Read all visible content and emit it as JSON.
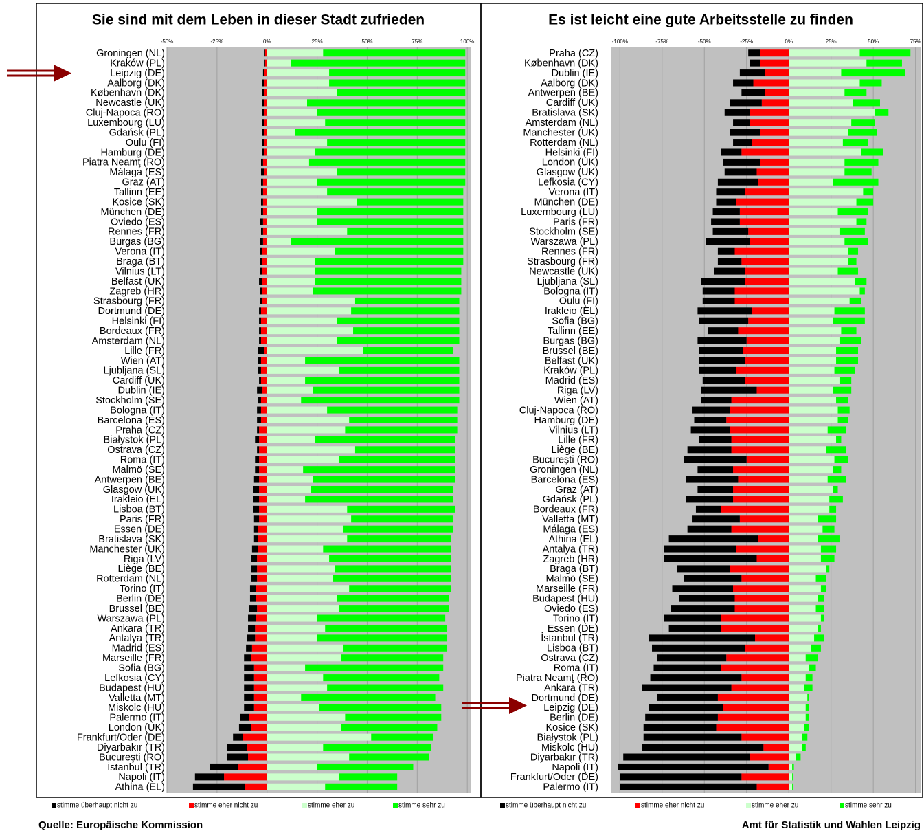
{
  "chart_data": [
    {
      "type": "diverging_bar",
      "title": "Sie sind mit dem Leben in dieser Stadt zufrieden",
      "categories": [
        "Groningen (NL)",
        "Kraków (PL)",
        "Leipzig (DE)",
        "Aalborg (DK)",
        "København (DK)",
        "Newcastle (UK)",
        "Cluj-Napoca (RO)",
        "Luxembourg (LU)",
        "Gdańsk (PL)",
        "Oulu (FI)",
        "Hamburg (DE)",
        "Piatra Neamţ (RO)",
        "Málaga (ES)",
        "Graz (AT)",
        "Tallinn (EE)",
        "Kosice (SK)",
        "München (DE)",
        "Oviedo (ES)",
        "Rennes (FR)",
        "Burgas (BG)",
        "Verona (IT)",
        "Braga (BT)",
        "Vilnius (LT)",
        "Belfast (UK)",
        "Zagreb (HR)",
        "Strasbourg (FR)",
        "Dortmund (DE)",
        "Helsinki (FI)",
        "Bordeaux (FR)",
        "Amsterdam (NL)",
        "Lille (FR)",
        "Wien (AT)",
        "Ljubljana (SL)",
        "Cardiff (UK)",
        "Dublin (IE)",
        "Stockholm (SE)",
        "Bologna (IT)",
        "Barcelona (ES)",
        "Praha (CZ)",
        "Białystok (PL)",
        "Ostrava (CZ)",
        "Roma (IT)",
        "Malmö (SE)",
        "Antwerpen (BE)",
        "Glasgow (UK)",
        "Irakleio (EL)",
        "Lisboa (BT)",
        "Paris (FR)",
        "Essen (DE)",
        "Bratislava (SK)",
        "Manchester (UK)",
        "Riga (LV)",
        "Liège (BE)",
        "Rotterdam (NL)",
        "Torino (IT)",
        "Berlin (DE)",
        "Brussel (BE)",
        "Warszawa (PL)",
        "Ankara (TR)",
        "Antalya (TR)",
        "Madrid (ES)",
        "Marseille (FR)",
        "Sofia (BG)",
        "Lefkosia (CY)",
        "Budapest (HU)",
        "Valletta (MT)",
        "Miskolc (HU)",
        "Palermo (IT)",
        "London (UK)",
        "Frankfurt/Oder (DE)",
        "Diyarbakır (TR)",
        "Bucureşti (RO)",
        "İstanbul (TR)",
        "Napoli (IT)",
        "Athina (EL)"
      ],
      "series": [
        {
          "name": "stimme überhaupt nicht zu",
          "color": "#000000",
          "values": [
            0.5,
            0.5,
            0.5,
            1,
            1,
            1,
            1,
            1,
            1,
            1,
            1,
            1,
            1.5,
            1,
            1,
            1,
            1,
            1.5,
            1,
            1.5,
            1,
            1,
            1,
            1.5,
            1,
            1,
            1,
            1,
            1,
            1,
            3,
            1.5,
            1.5,
            1,
            2.5,
            1.5,
            2,
            2,
            1,
            2,
            1,
            2,
            2,
            2.5,
            3,
            3,
            3,
            2.5,
            2,
            2,
            3,
            3,
            3,
            3,
            3,
            3,
            4,
            4,
            3.5,
            4,
            3,
            3.5,
            5,
            5,
            5,
            5,
            5,
            4.5,
            6,
            5,
            10,
            10.5,
            14,
            14.5,
            26
          ]
        },
        {
          "name": "stimme eher nicht zu",
          "color": "#ff0000",
          "values": [
            1,
            1,
            1.5,
            1.5,
            1.5,
            1.5,
            1.5,
            1.5,
            1.5,
            1.5,
            1.5,
            2,
            1.5,
            2,
            2,
            2,
            2,
            2,
            2,
            2,
            2.5,
            2.5,
            2.5,
            2.5,
            2.5,
            2.5,
            3,
            3,
            3,
            3,
            1.5,
            3,
            3,
            3,
            2.5,
            3,
            3,
            3,
            4,
            4,
            4,
            4,
            4,
            4,
            4,
            4,
            4,
            4,
            4.5,
            4.5,
            4.5,
            5,
            5,
            5,
            5.5,
            5.5,
            5,
            5.5,
            6,
            6,
            7.5,
            8,
            6.5,
            6.5,
            6.5,
            6.5,
            6.5,
            9,
            8,
            12,
            10,
            9.5,
            14.5,
            21.5,
            11
          ]
        },
        {
          "name": "stimme eher zu",
          "color": "#ccffcc",
          "values": [
            28,
            12,
            31,
            31,
            35,
            20,
            25,
            29,
            14,
            30,
            24,
            21,
            35,
            25,
            30,
            45,
            25,
            25,
            40,
            12,
            34,
            24,
            24,
            24,
            23,
            44,
            42,
            35,
            43,
            35,
            48,
            19,
            36,
            19,
            23,
            17,
            30,
            41,
            39,
            24,
            44,
            36,
            18,
            23,
            22,
            19,
            40,
            42,
            38,
            40,
            28,
            31,
            34,
            33,
            41,
            35,
            36,
            25,
            29,
            25,
            38,
            37,
            19,
            28,
            30,
            17,
            26,
            39,
            37,
            52,
            28,
            41,
            25,
            36,
            29
          ]
        },
        {
          "name": "stimme sehr zu",
          "color": "#00ff00",
          "values": [
            71,
            87,
            68,
            68,
            64,
            79,
            74,
            70,
            85,
            69,
            75,
            78,
            64,
            74,
            68,
            53,
            73,
            73,
            58,
            86,
            64,
            74,
            73,
            73,
            74,
            52,
            54,
            61,
            53,
            61,
            45,
            77,
            60,
            77,
            73,
            79,
            65,
            54,
            56,
            70,
            50,
            58,
            76,
            71,
            71,
            74,
            54,
            51,
            55,
            52,
            64,
            61,
            58,
            59,
            51,
            56,
            55,
            64,
            61,
            65,
            52,
            51,
            69,
            58,
            58,
            67,
            61,
            48,
            48,
            31,
            54,
            40,
            48,
            29,
            36
          ]
        }
      ],
      "xlim": [
        -50,
        102
      ],
      "xticks": [
        {
          "value": -50,
          "label": "-50%"
        },
        {
          "value": -25,
          "label": "-25%"
        },
        {
          "value": 0,
          "label": "0%"
        },
        {
          "value": 25,
          "label": "25%"
        },
        {
          "value": 50,
          "label": "50%"
        },
        {
          "value": 75,
          "label": "75%"
        },
        {
          "value": 100,
          "label": "100%"
        }
      ],
      "grid": true,
      "legend": "bottom"
    },
    {
      "type": "diverging_bar",
      "title": "Es ist leicht eine gute Arbeitsstelle zu finden",
      "categories": [
        "Praha (CZ)",
        "København (DK)",
        "Dublin (IE)",
        "Aalborg (DK)",
        "Antwerpen (BE)",
        "Cardiff (UK)",
        "Bratislava (SK)",
        "Amsterdam (NL)",
        "Manchester (UK)",
        "Rotterdam (NL)",
        "Helsinki (FI)",
        "London (UK)",
        "Glasgow (UK)",
        "Lefkosia (CY)",
        "Verona (IT)",
        "München (DE)",
        "Luxembourg (LU)",
        "Paris (FR)",
        "Stockholm (SE)",
        "Warszawa (PL)",
        "Rennes (FR)",
        "Strasbourg (FR)",
        "Newcastle (UK)",
        "Ljubljana (SL)",
        "Bologna (IT)",
        "Oulu (FI)",
        "Irakleio (EL)",
        "Sofia (BG)",
        "Tallinn (EE)",
        "Burgas (BG)",
        "Brussel (BE)",
        "Belfast (UK)",
        "Kraków (PL)",
        "Madrid (ES)",
        "Riga (LV)",
        "Wien (AT)",
        "Cluj-Napoca (RO)",
        "Hamburg (DE)",
        "Vilnius (LT)",
        "Lille (FR)",
        "Liège (BE)",
        "Bucureşti (RO)",
        "Groningen (NL)",
        "Barcelona (ES)",
        "Graz (AT)",
        "Gdańsk (PL)",
        "Bordeaux (FR)",
        "Valletta (MT)",
        "Málaga (ES)",
        "Athina (EL)",
        "Antalya (TR)",
        "Zagreb (HR)",
        "Braga (BT)",
        "Malmö (SE)",
        "Marseille (FR)",
        "Budapest (HU)",
        "Oviedo (ES)",
        "Torino (IT)",
        "Essen (DE)",
        "İstanbul (TR)",
        "Lisboa (BT)",
        "Ostrava (CZ)",
        "Roma (IT)",
        "Piatra Neamţ (RO)",
        "Ankara (TR)",
        "Dortmund (DE)",
        "Leipzig (DE)",
        "Berlin (DE)",
        "Kosice (SK)",
        "Białystok (PL)",
        "Miskolc (HU)",
        "Diyarbakır (TR)",
        "Napoli (IT)",
        "Frankfurt/Oder (DE)",
        "Palermo (IT)"
      ],
      "series": [
        {
          "name": "stimme überhaupt nicht zu",
          "color": "#000000",
          "values": [
            7,
            6,
            15,
            12,
            14,
            19,
            15,
            10,
            18,
            11,
            12,
            22,
            19,
            24,
            17,
            12,
            16,
            17,
            21,
            26,
            10,
            14,
            18,
            26,
            19,
            19,
            32,
            29,
            18,
            29,
            26,
            27,
            22,
            25,
            33,
            18,
            22,
            19,
            23,
            19,
            26,
            37,
            21,
            31,
            21,
            28,
            15,
            28,
            26,
            53,
            43,
            55,
            31,
            34,
            36,
            33,
            38,
            34,
            31,
            63,
            55,
            41,
            40,
            54,
            53,
            36,
            44,
            43,
            43,
            58,
            72,
            75,
            89,
            72,
            81
          ]
        },
        {
          "name": "stimme eher nicht zu",
          "color": "#ff0000",
          "values": [
            17,
            17,
            14,
            21,
            14,
            16,
            23,
            23,
            17,
            22,
            28,
            17,
            19,
            18,
            26,
            31,
            29,
            29,
            24,
            23,
            32,
            28,
            26,
            26,
            32,
            32,
            22,
            24,
            30,
            25,
            27,
            26,
            31,
            26,
            19,
            34,
            35,
            37,
            35,
            34,
            34,
            25,
            33,
            30,
            33,
            33,
            40,
            29,
            34,
            18,
            31,
            19,
            35,
            28,
            33,
            32,
            32,
            40,
            40,
            20,
            26,
            37,
            40,
            28,
            34,
            42,
            39,
            42,
            43,
            28,
            15,
            23,
            12,
            28,
            19
          ]
        },
        {
          "name": "stimme eher zu",
          "color": "#ccffcc",
          "values": [
            42,
            46,
            31,
            42,
            33,
            38,
            51,
            37,
            35,
            32,
            43,
            33,
            33,
            26,
            44,
            40,
            29,
            40,
            30,
            33,
            35,
            35,
            29,
            39,
            42,
            36,
            27,
            26,
            31,
            30,
            28,
            28,
            27,
            30,
            26,
            28,
            29,
            29,
            23,
            28,
            22,
            27,
            26,
            23,
            26,
            24,
            24,
            17,
            20,
            17,
            19,
            19,
            22,
            16,
            19,
            17,
            16,
            19,
            17,
            15,
            13,
            10,
            12,
            10,
            9,
            11,
            10,
            10,
            9,
            8,
            8,
            4,
            2,
            2,
            2
          ]
        },
        {
          "name": "stimme sehr zu",
          "color": "#00ff00",
          "values": [
            30,
            21,
            38,
            13,
            13,
            16,
            8,
            14,
            17,
            15,
            13,
            20,
            16,
            27,
            6,
            10,
            18,
            6,
            15,
            14,
            6,
            5,
            12,
            7,
            3,
            7,
            18,
            19,
            9,
            13,
            13,
            13,
            12,
            7,
            11,
            7,
            7,
            6,
            11,
            3,
            12,
            8,
            5,
            11,
            3,
            8,
            4,
            11,
            7,
            13,
            9,
            8,
            2,
            6,
            3,
            4,
            5,
            2,
            2,
            6,
            6,
            7,
            4,
            4,
            5,
            1,
            2,
            2,
            3,
            3,
            2,
            3,
            1,
            0.5,
            0.5
          ]
        }
      ],
      "xlim": [
        -105,
        78
      ],
      "xticks": [
        {
          "value": -100,
          "label": "-100%"
        },
        {
          "value": -75,
          "label": "-75%"
        },
        {
          "value": -50,
          "label": "-50%"
        },
        {
          "value": -25,
          "label": "-25%"
        },
        {
          "value": 0,
          "label": "0%"
        },
        {
          "value": 25,
          "label": "25%"
        },
        {
          "value": 50,
          "label": "50%"
        },
        {
          "value": 75,
          "label": "75%"
        }
      ],
      "grid": true,
      "legend": "bottom"
    }
  ],
  "footer": {
    "source": "Quelle: Europäische Kommission",
    "publisher": "Amt für Statistik und Wahlen Leipzig"
  }
}
